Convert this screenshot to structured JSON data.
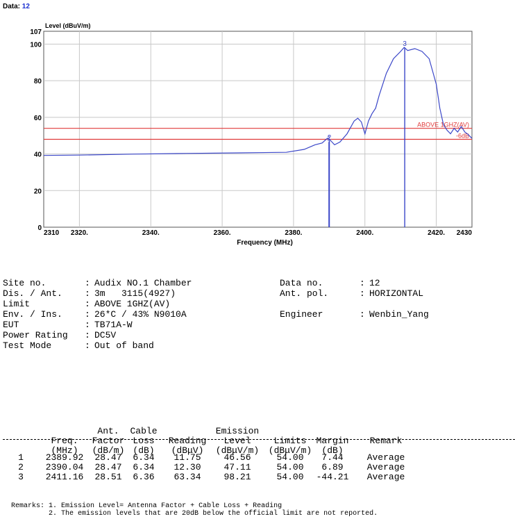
{
  "header": {
    "label": "Data:",
    "value": "12"
  },
  "chart_data": {
    "type": "line",
    "ylabel": "Level (dBuV/m)",
    "xlabel": "Frequency (MHz)",
    "xlim": [
      2310,
      2430
    ],
    "ylim": [
      0,
      107
    ],
    "x_ticks": [
      {
        "v": 2310,
        "t": "2310"
      },
      {
        "v": 2320,
        "t": "2320."
      },
      {
        "v": 2340,
        "t": "2340."
      },
      {
        "v": 2360,
        "t": "2360."
      },
      {
        "v": 2380,
        "t": "2380."
      },
      {
        "v": 2400,
        "t": "2400."
      },
      {
        "v": 2420,
        "t": "2420."
      },
      {
        "v": 2430,
        "t": "2430"
      }
    ],
    "y_ticks": [
      {
        "v": 0,
        "t": "0"
      },
      {
        "v": 20,
        "t": "20"
      },
      {
        "v": 40,
        "t": "40"
      },
      {
        "v": 60,
        "t": "60"
      },
      {
        "v": 80,
        "t": "80"
      },
      {
        "v": 100,
        "t": "100"
      },
      {
        "v": 107,
        "t": "107"
      }
    ],
    "grid": true,
    "series": [
      {
        "color": "#3a46c8",
        "x": [
          2310,
          2320,
          2335,
          2350,
          2365,
          2378,
          2383,
          2386,
          2388,
          2389.5,
          2390.5,
          2391.5,
          2393,
          2395,
          2397,
          2398,
          2399,
          2400,
          2401,
          2402,
          2403,
          2404,
          2406,
          2408,
          2410,
          2411,
          2412,
          2414,
          2416,
          2418,
          2420,
          2421,
          2422,
          2423,
          2424,
          2425,
          2426,
          2427,
          2428,
          2429,
          2430
        ],
        "y": [
          39.2,
          39.4,
          39.9,
          40.3,
          40.6,
          40.9,
          42.5,
          45,
          46,
          48.6,
          47.1,
          45,
          46.5,
          51,
          58,
          59.5,
          57.5,
          51,
          58,
          62,
          65,
          72,
          84,
          92,
          96,
          98.2,
          96.5,
          97.5,
          96,
          92,
          78,
          65,
          56,
          53,
          51,
          54,
          52,
          55,
          52,
          50.5,
          48.5
        ]
      }
    ],
    "limit_lines": [
      {
        "y": 54,
        "color": "#e03a3a",
        "label": "ABOVE 1GHZ(AV)"
      },
      {
        "y": 48,
        "color": "#e03a3a",
        "label": "-6dB"
      }
    ],
    "markers": [
      {
        "x": 2389.92,
        "y": 46.56,
        "label": "1"
      },
      {
        "x": 2390.04,
        "y": 47.11,
        "label": "2"
      },
      {
        "x": 2411.16,
        "y": 98.21,
        "label": "3"
      }
    ]
  },
  "info": {
    "left": [
      {
        "k": "Site no.",
        "v": "Audix NO.1 Chamber"
      },
      {
        "k": "Dis. / Ant.",
        "v": "3m   3115(4927)"
      },
      {
        "k": "Limit",
        "v": "ABOVE 1GHZ(AV)"
      },
      {
        "k": "Env. / Ins.",
        "v": "26*C / 43% N9010A"
      },
      {
        "k": "EUT",
        "v": "TB71A-W"
      },
      {
        "k": "Power Rating",
        "v": "DC5V"
      },
      {
        "k": "Test Mode",
        "v": "Out of band"
      }
    ],
    "right": [
      {
        "k": "Data no.",
        "v": "12"
      },
      {
        "k": "Ant. pol.",
        "v": "HORIZONTAL"
      },
      {
        "k": "",
        "v": ""
      },
      {
        "k": "Engineer",
        "v": "Wenbin_Yang"
      }
    ]
  },
  "table": {
    "header_lines": [
      [
        "",
        "",
        "Ant.",
        "Cable",
        "",
        "Emission",
        "",
        "",
        ""
      ],
      [
        "",
        "Freq.",
        "Factor",
        "Loss",
        "Reading",
        "Level",
        "Limits",
        "Margin",
        "Remark"
      ],
      [
        "",
        "(MHz)",
        "(dB/m)",
        "(dB)",
        "(dBμV)",
        "(dBμV/m)",
        "(dBμV/m)",
        "(dB)",
        ""
      ]
    ],
    "rows": [
      [
        "1",
        "2389.92",
        "28.47",
        "6.34",
        "11.75",
        "46.56",
        "54.00",
        "7.44",
        "Average"
      ],
      [
        "2",
        "2390.04",
        "28.47",
        "6.34",
        "12.30",
        "47.11",
        "54.00",
        "6.89",
        "Average"
      ],
      [
        "3",
        "2411.16",
        "28.51",
        "6.36",
        "63.34",
        "98.21",
        "54.00",
        "-44.21",
        "Average"
      ]
    ]
  },
  "remarks": {
    "label": "Remarks:",
    "line1": "1. Emission Level= Antenna Factor + Cable Loss + Reading",
    "line2": "2. The emission levels that are 20dB below the official limit are not reported."
  }
}
